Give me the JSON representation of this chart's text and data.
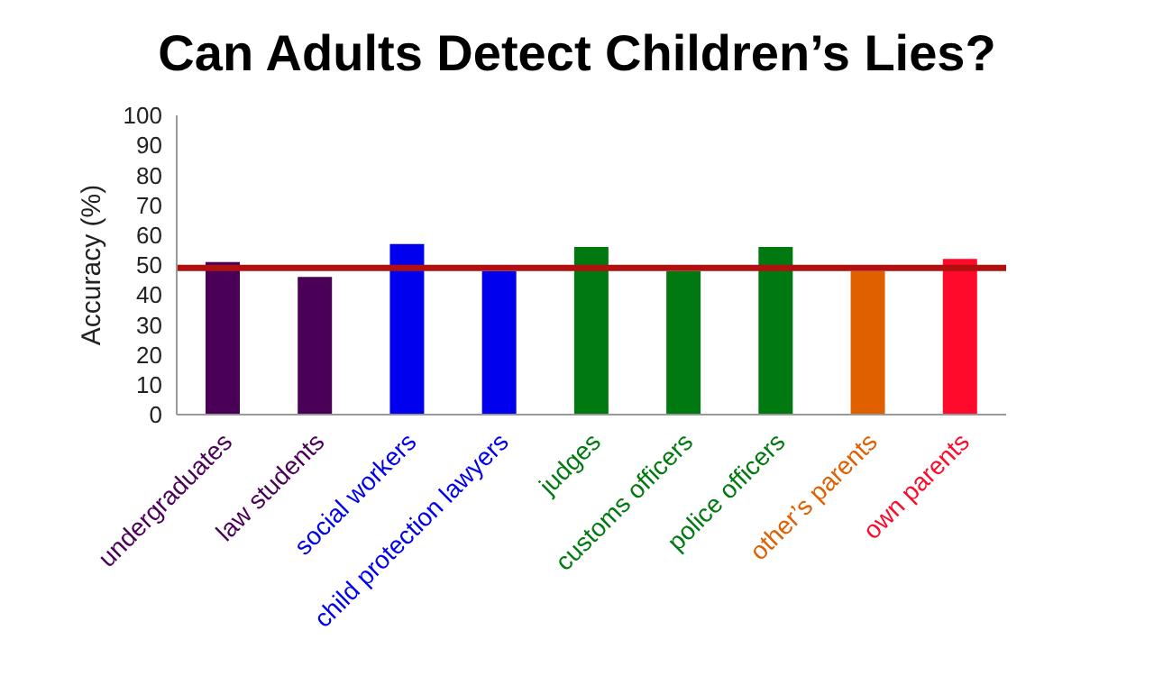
{
  "chart_data": {
    "type": "bar",
    "title": "Can Adults Detect Children’s Lies?",
    "ylabel": "Accuracy (%)",
    "categories": [
      "undergraduates",
      "law students",
      "social workers",
      "child protection lawyers",
      "judges",
      "customs officers",
      "police officers",
      "other’s parents",
      "own parents"
    ],
    "values": [
      51,
      46,
      57,
      48,
      56,
      48,
      56,
      48,
      52
    ],
    "colors": [
      "#4a0057",
      "#4a0057",
      "#0000ee",
      "#0000ee",
      "#007a10",
      "#007a10",
      "#007a10",
      "#e06000",
      "#ff0a2a"
    ],
    "ylim": [
      0,
      100
    ],
    "yticks": [
      0,
      10,
      20,
      30,
      40,
      50,
      60,
      70,
      80,
      90,
      100
    ],
    "ref_lines": [
      {
        "axis": "y",
        "value": 49,
        "color": "#b01010"
      }
    ],
    "grid": false,
    "legend": false
  }
}
